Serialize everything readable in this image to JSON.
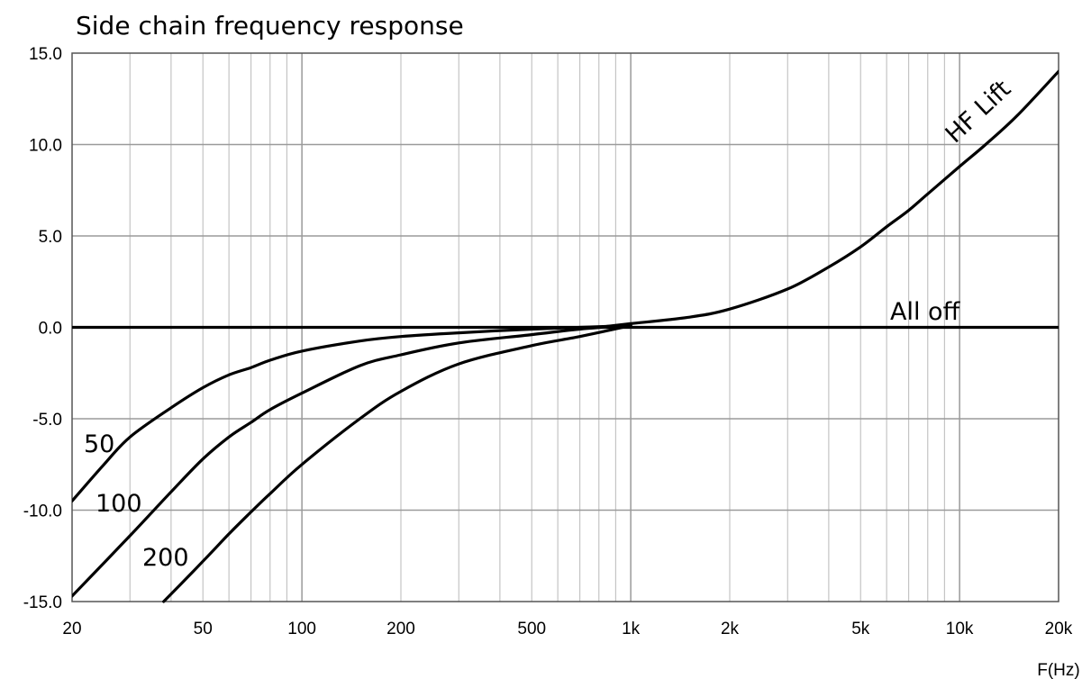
{
  "chart_data": {
    "type": "line",
    "title": "Side chain frequency response",
    "xlabel": "F(Hz)",
    "ylabel": "",
    "x_scale": "log",
    "xlim": [
      20,
      20000
    ],
    "ylim": [
      -15,
      15
    ],
    "grid": true,
    "x_ticks": [
      20,
      50,
      100,
      200,
      500,
      1000,
      2000,
      5000,
      10000,
      20000
    ],
    "x_tick_labels": [
      "20",
      "50",
      "100",
      "200",
      "500",
      "1k",
      "2k",
      "5k",
      "10k",
      "20k"
    ],
    "y_ticks": [
      15,
      10,
      5,
      0,
      -5,
      -10,
      -15
    ],
    "y_tick_labels": [
      "15.0",
      "10.0",
      "5.0",
      "0.0",
      "-5.0",
      "-10.0",
      "-15.0"
    ],
    "series": [
      {
        "name": "All off",
        "x": [
          20,
          20000
        ],
        "y": [
          0,
          0
        ]
      },
      {
        "name": "HF Lift",
        "x": [
          800,
          1000,
          1500,
          2000,
          3000,
          4000,
          5000,
          6000,
          7000,
          8000,
          10000,
          12000,
          15000,
          20000
        ],
        "y": [
          0.0,
          0.2,
          0.55,
          1.0,
          2.1,
          3.3,
          4.4,
          5.5,
          6.4,
          7.3,
          8.8,
          10.0,
          11.6,
          14.0
        ]
      },
      {
        "name": "50",
        "x": [
          20,
          25,
          30,
          40,
          50,
          60,
          70,
          80,
          100,
          150,
          200,
          300,
          500,
          700,
          1000
        ],
        "y": [
          -9.5,
          -7.5,
          -6.0,
          -4.4,
          -3.3,
          -2.6,
          -2.2,
          -1.8,
          -1.3,
          -0.75,
          -0.5,
          -0.3,
          -0.1,
          0.0,
          0.1
        ]
      },
      {
        "name": "100",
        "x": [
          20,
          30,
          40,
          50,
          60,
          70,
          80,
          100,
          150,
          200,
          300,
          500,
          700,
          1000
        ],
        "y": [
          -14.7,
          -11.4,
          -9.0,
          -7.2,
          -6.0,
          -5.2,
          -4.5,
          -3.6,
          -2.1,
          -1.5,
          -0.85,
          -0.4,
          -0.1,
          0.1
        ]
      },
      {
        "name": "200",
        "x": [
          38,
          50,
          60,
          70,
          80,
          100,
          150,
          200,
          300,
          500,
          700,
          1000
        ],
        "y": [
          -15.0,
          -12.8,
          -11.3,
          -10.1,
          -9.1,
          -7.5,
          -5.0,
          -3.5,
          -2.0,
          -1.0,
          -0.5,
          0.1
        ]
      }
    ],
    "labels": [
      "HF Lift",
      "All off",
      "50",
      "100",
      "200"
    ]
  }
}
